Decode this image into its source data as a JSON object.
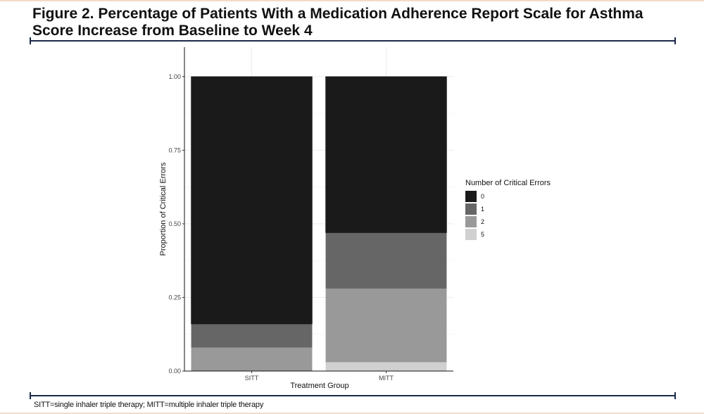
{
  "figure": {
    "title": "Figure 2. Percentage of Patients With a Medication Adherence Report Scale for Asthma Score Increase from Baseline to Week 4",
    "footnote": "SITT=single inhaler triple therapy; MITT=multiple inhaler triple therapy"
  },
  "chart_data": {
    "type": "bar",
    "stacked": true,
    "categories": [
      "SITT",
      "MITT"
    ],
    "series": [
      {
        "name": "5",
        "values": [
          0.0,
          0.03
        ],
        "color": "#d0d0d0"
      },
      {
        "name": "2",
        "values": [
          0.08,
          0.25
        ],
        "color": "#999999"
      },
      {
        "name": "1",
        "values": [
          0.08,
          0.19
        ],
        "color": "#666666"
      },
      {
        "name": "0",
        "values": [
          0.84,
          0.53
        ],
        "color": "#1a1a1a"
      }
    ],
    "legend_order": [
      "0",
      "1",
      "2",
      "5"
    ],
    "legend_title": "Number of Critical Errors",
    "legend_position": "right",
    "xlabel": "Treatment Group",
    "ylabel": "Proportion of Critical Errors",
    "yticks": [
      "0.00",
      "0.25",
      "0.50",
      "0.75",
      "1.00"
    ],
    "ylim": [
      0,
      1.1
    ],
    "grid": true
  }
}
